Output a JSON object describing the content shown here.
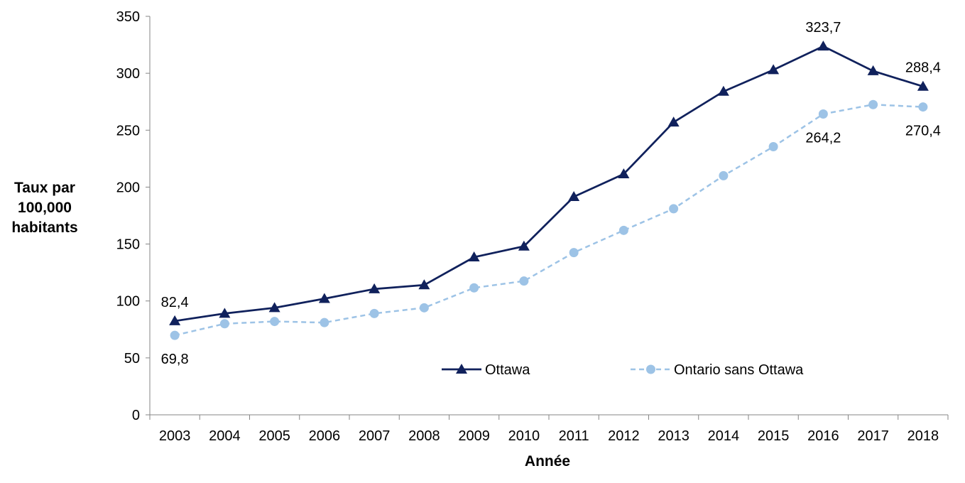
{
  "chart_data": {
    "type": "line",
    "title": "",
    "xlabel": "Année",
    "ylabel": [
      "Taux par",
      "100,000",
      "habitants"
    ],
    "ylim": [
      0,
      350
    ],
    "yticks": [
      0,
      50,
      100,
      150,
      200,
      250,
      300,
      350
    ],
    "grid": false,
    "legend_position": "bottom-right",
    "categories": [
      "2003",
      "2004",
      "2005",
      "2006",
      "2007",
      "2008",
      "2009",
      "2010",
      "2011",
      "2012",
      "2013",
      "2014",
      "2015",
      "2016",
      "2017",
      "2018"
    ],
    "series": [
      {
        "name": "Ottawa",
        "color": "#10215c",
        "marker": "triangle",
        "line_style": "solid",
        "values": [
          82.4,
          89,
          94,
          102,
          110.5,
          114,
          138.5,
          148,
          191.5,
          211.5,
          257,
          284,
          303,
          323.7,
          302,
          288.4
        ]
      },
      {
        "name": "Ontario sans Ottawa",
        "color": "#9dc3e6",
        "marker": "circle",
        "line_style": "dashed",
        "values": [
          69.8,
          80,
          82,
          81,
          89,
          94,
          111.5,
          117.5,
          142.5,
          162,
          181,
          210,
          235.5,
          264.2,
          272.5,
          270.4
        ]
      }
    ],
    "annotations": [
      {
        "series": 0,
        "index": 0,
        "text": "82,4",
        "placement": "above"
      },
      {
        "series": 0,
        "index": 13,
        "text": "323,7",
        "placement": "above"
      },
      {
        "series": 0,
        "index": 15,
        "text": "288,4",
        "placement": "above"
      },
      {
        "series": 1,
        "index": 0,
        "text": "69,8",
        "placement": "below"
      },
      {
        "series": 1,
        "index": 13,
        "text": "264,2",
        "placement": "below"
      },
      {
        "series": 1,
        "index": 15,
        "text": "270,4",
        "placement": "below"
      }
    ]
  }
}
